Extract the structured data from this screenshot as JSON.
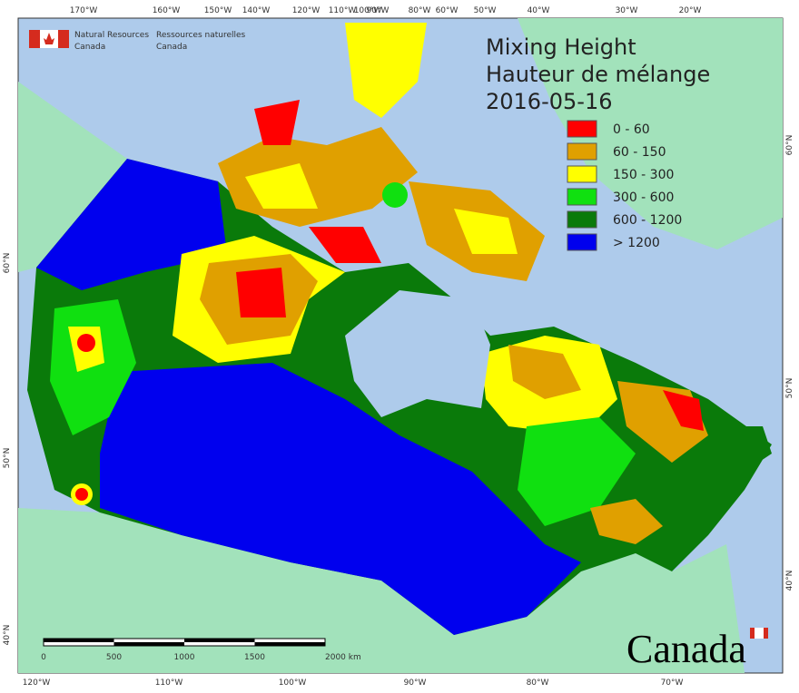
{
  "header": {
    "agency_en": [
      "Natural Resources",
      "Canada"
    ],
    "agency_fr": [
      "Ressources naturelles",
      "Canada"
    ]
  },
  "title": [
    "Mixing Height",
    "Hauteur de mélange",
    "2016-05-16"
  ],
  "legend": [
    {
      "label": "0 - 60",
      "color": "#ff0000"
    },
    {
      "label": "60 - 150",
      "color": "#e0a000"
    },
    {
      "label": "150 - 300",
      "color": "#ffff00"
    },
    {
      "label": "300 - 600",
      "color": "#10e010"
    },
    {
      "label": "600 - 1200",
      "color": "#0a7a0a"
    },
    {
      "label": "> 1200",
      "color": "#0000ee"
    }
  ],
  "top_longitudes": [
    "170°W",
    "160°W",
    "150°W",
    "140°W",
    "120°W",
    "110°W",
    "100°W",
    "90°W",
    "80°W",
    "60°W",
    "50°W",
    "40°W",
    "30°W",
    "20°W"
  ],
  "bottom_longitudes": [
    "120°W",
    "110°W",
    "100°W",
    "90°W",
    "80°W",
    "70°W"
  ],
  "left_latitudes": [
    "60°N",
    "50°N",
    "40°N"
  ],
  "right_latitudes": [
    "60°N",
    "50°N",
    "40°N"
  ],
  "scale_bar": [
    "0",
    "500",
    "1000",
    "1500",
    "2000  km"
  ],
  "wordmark": "Canada"
}
